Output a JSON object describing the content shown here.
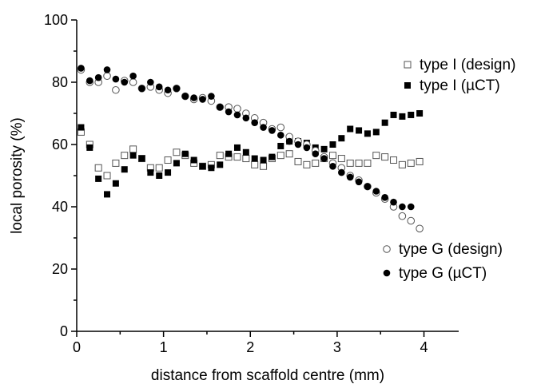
{
  "chart_data": {
    "type": "scatter",
    "xlabel": "distance from scaffold centre (mm)",
    "ylabel": "local porosity (%)",
    "xlim": [
      0,
      4.4
    ],
    "ylim": [
      0,
      100
    ],
    "x_ticks": [
      0,
      1,
      2,
      3,
      4
    ],
    "y_ticks": [
      0,
      20,
      40,
      60,
      80,
      100
    ],
    "grid": false,
    "legends": [
      {
        "placement": "right-upper",
        "entries": [
          "type I (design)",
          "type I (µCT)"
        ]
      },
      {
        "placement": "bottom-right",
        "entries": [
          "type G (design)",
          "type G (µCT)"
        ]
      }
    ],
    "series": [
      {
        "name": "type I (design)",
        "marker": "open-square",
        "points": [
          [
            0.05,
            64
          ],
          [
            0.15,
            60
          ],
          [
            0.25,
            52.5
          ],
          [
            0.35,
            50
          ],
          [
            0.45,
            54
          ],
          [
            0.55,
            56.5
          ],
          [
            0.65,
            58.5
          ],
          [
            0.75,
            55.5
          ],
          [
            0.85,
            52.5
          ],
          [
            0.95,
            52.5
          ],
          [
            1.05,
            55
          ],
          [
            1.15,
            57.5
          ],
          [
            1.25,
            56.5
          ],
          [
            1.35,
            54
          ],
          [
            1.45,
            53
          ],
          [
            1.55,
            53.5
          ],
          [
            1.65,
            56.5
          ],
          [
            1.75,
            56
          ],
          [
            1.85,
            56
          ],
          [
            1.95,
            55.5
          ],
          [
            2.05,
            53.5
          ],
          [
            2.15,
            53
          ],
          [
            2.25,
            55.5
          ],
          [
            2.35,
            56.5
          ],
          [
            2.45,
            57
          ],
          [
            2.55,
            54.5
          ],
          [
            2.65,
            53.5
          ],
          [
            2.75,
            54
          ],
          [
            2.85,
            55.5
          ],
          [
            2.95,
            56.5
          ],
          [
            3.05,
            55.5
          ],
          [
            3.15,
            54
          ],
          [
            3.25,
            54
          ],
          [
            3.35,
            54
          ],
          [
            3.45,
            56.5
          ],
          [
            3.55,
            56
          ],
          [
            3.65,
            55
          ],
          [
            3.75,
            53.5
          ],
          [
            3.85,
            54
          ],
          [
            3.95,
            54.5
          ]
        ]
      },
      {
        "name": "type I (µCT)",
        "marker": "filled-square",
        "points": [
          [
            0.05,
            65.5
          ],
          [
            0.15,
            59
          ],
          [
            0.25,
            49
          ],
          [
            0.35,
            44
          ],
          [
            0.45,
            47.5
          ],
          [
            0.55,
            52
          ],
          [
            0.65,
            56.5
          ],
          [
            0.75,
            55.5
          ],
          [
            0.85,
            51
          ],
          [
            0.95,
            50
          ],
          [
            1.05,
            51
          ],
          [
            1.15,
            54
          ],
          [
            1.25,
            57
          ],
          [
            1.35,
            55
          ],
          [
            1.45,
            53
          ],
          [
            1.55,
            52.5
          ],
          [
            1.65,
            53.5
          ],
          [
            1.75,
            57
          ],
          [
            1.85,
            59
          ],
          [
            1.95,
            57.5
          ],
          [
            2.05,
            55.5
          ],
          [
            2.15,
            55
          ],
          [
            2.25,
            56
          ],
          [
            2.35,
            59.5
          ],
          [
            2.45,
            61
          ],
          [
            2.55,
            61
          ],
          [
            2.65,
            60.5
          ],
          [
            2.75,
            59
          ],
          [
            2.85,
            58.5
          ],
          [
            2.95,
            60
          ],
          [
            3.05,
            62
          ],
          [
            3.15,
            65
          ],
          [
            3.25,
            64.5
          ],
          [
            3.35,
            63.5
          ],
          [
            3.45,
            64
          ],
          [
            3.55,
            67
          ],
          [
            3.65,
            69.5
          ],
          [
            3.75,
            69
          ],
          [
            3.85,
            69.5
          ],
          [
            3.95,
            70
          ]
        ]
      },
      {
        "name": "type G (design)",
        "marker": "open-circle",
        "points": [
          [
            0.05,
            84
          ],
          [
            0.15,
            80
          ],
          [
            0.25,
            80
          ],
          [
            0.35,
            82
          ],
          [
            0.45,
            77.5
          ],
          [
            0.55,
            80.5
          ],
          [
            0.65,
            80
          ],
          [
            0.75,
            78
          ],
          [
            0.85,
            78.5
          ],
          [
            0.95,
            77.5
          ],
          [
            1.05,
            76.5
          ],
          [
            1.15,
            78
          ],
          [
            1.25,
            75.5
          ],
          [
            1.35,
            74.5
          ],
          [
            1.45,
            75
          ],
          [
            1.55,
            74
          ],
          [
            1.65,
            72
          ],
          [
            1.75,
            72
          ],
          [
            1.85,
            71.5
          ],
          [
            1.95,
            70
          ],
          [
            2.05,
            68.5
          ],
          [
            2.15,
            67
          ],
          [
            2.25,
            65
          ],
          [
            2.35,
            65.5
          ],
          [
            2.45,
            62.5
          ],
          [
            2.55,
            61
          ],
          [
            2.65,
            60
          ],
          [
            2.75,
            58
          ],
          [
            2.85,
            56
          ],
          [
            2.95,
            54
          ],
          [
            3.05,
            52.5
          ],
          [
            3.15,
            50
          ],
          [
            3.25,
            48.5
          ],
          [
            3.35,
            46.5
          ],
          [
            3.45,
            44.5
          ],
          [
            3.55,
            42.5
          ],
          [
            3.65,
            40
          ],
          [
            3.75,
            37
          ],
          [
            3.85,
            35.5
          ],
          [
            3.95,
            33
          ]
        ]
      },
      {
        "name": "type G (µCT)",
        "marker": "filled-circle",
        "points": [
          [
            0.05,
            84.5
          ],
          [
            0.15,
            80.5
          ],
          [
            0.25,
            81.5
          ],
          [
            0.35,
            84
          ],
          [
            0.45,
            81
          ],
          [
            0.55,
            80
          ],
          [
            0.65,
            82
          ],
          [
            0.75,
            78
          ],
          [
            0.85,
            80
          ],
          [
            0.95,
            78.5
          ],
          [
            1.05,
            77.5
          ],
          [
            1.15,
            78
          ],
          [
            1.25,
            75.5
          ],
          [
            1.35,
            75
          ],
          [
            1.45,
            74.5
          ],
          [
            1.55,
            75.5
          ],
          [
            1.65,
            72
          ],
          [
            1.75,
            70.5
          ],
          [
            1.85,
            69.5
          ],
          [
            1.95,
            68.5
          ],
          [
            2.05,
            67
          ],
          [
            2.15,
            65.5
          ],
          [
            2.25,
            64.5
          ],
          [
            2.35,
            63
          ],
          [
            2.45,
            61
          ],
          [
            2.55,
            60
          ],
          [
            2.65,
            59
          ],
          [
            2.75,
            57
          ],
          [
            2.85,
            55.5
          ],
          [
            2.95,
            53
          ],
          [
            3.05,
            51
          ],
          [
            3.15,
            49.5
          ],
          [
            3.25,
            48
          ],
          [
            3.35,
            46.5
          ],
          [
            3.45,
            45
          ],
          [
            3.55,
            43
          ],
          [
            3.65,
            41.5
          ],
          [
            3.75,
            40
          ],
          [
            3.85,
            40
          ]
        ]
      }
    ]
  }
}
